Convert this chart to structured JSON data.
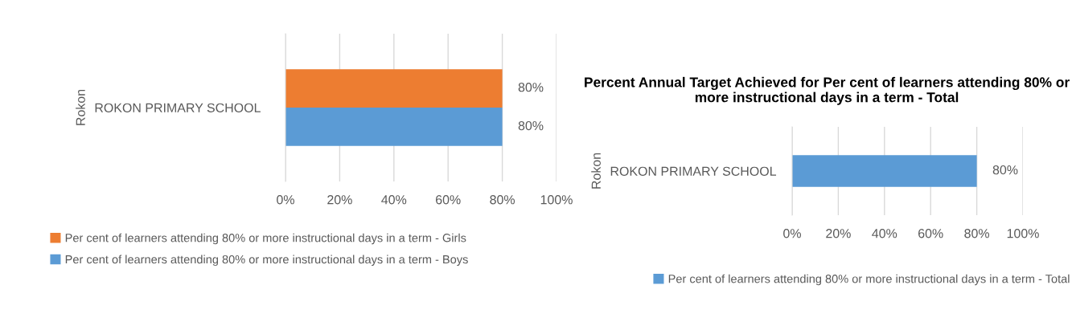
{
  "chart_data": [
    {
      "type": "bar",
      "orientation": "horizontal",
      "categories": [
        "ROKON PRIMARY SCHOOL"
      ],
      "ylabel": "Rokon",
      "series": [
        {
          "name": "Per cent of learners attending 80% or more instructional days in a term - Girls",
          "color": "#ed7d31",
          "values": [
            80
          ],
          "value_labels": [
            "80%"
          ]
        },
        {
          "name": "Per cent of learners attending 80% or more instructional days in a term - Boys",
          "color": "#5b9bd5",
          "values": [
            80
          ],
          "value_labels": [
            "80%"
          ]
        }
      ],
      "xlim": [
        0,
        100
      ],
      "xticks": [
        {
          "value": 0,
          "label": "0%"
        },
        {
          "value": 20,
          "label": "20%"
        },
        {
          "value": 40,
          "label": "40%"
        },
        {
          "value": 60,
          "label": "60%"
        },
        {
          "value": 80,
          "label": "80%"
        },
        {
          "value": 100,
          "label": "100%"
        }
      ],
      "grid": "x",
      "legend": "bottom"
    },
    {
      "type": "bar",
      "orientation": "horizontal",
      "title": "Percent Annual Target Achieved for Per cent of learners attending 80% or more instructional days in a term - Total",
      "categories": [
        "ROKON PRIMARY SCHOOL"
      ],
      "ylabel": "Rokon",
      "series": [
        {
          "name": "Per cent of learners attending 80% or more instructional days in a term - Total",
          "color": "#5b9bd5",
          "values": [
            80
          ],
          "value_labels": [
            "80%"
          ]
        }
      ],
      "xlim": [
        0,
        100
      ],
      "xticks": [
        {
          "value": 0,
          "label": "0%"
        },
        {
          "value": 20,
          "label": "20%"
        },
        {
          "value": 40,
          "label": "40%"
        },
        {
          "value": 60,
          "label": "60%"
        },
        {
          "value": 80,
          "label": "80%"
        },
        {
          "value": 100,
          "label": "100%"
        }
      ],
      "grid": "x",
      "legend": "bottom"
    }
  ]
}
